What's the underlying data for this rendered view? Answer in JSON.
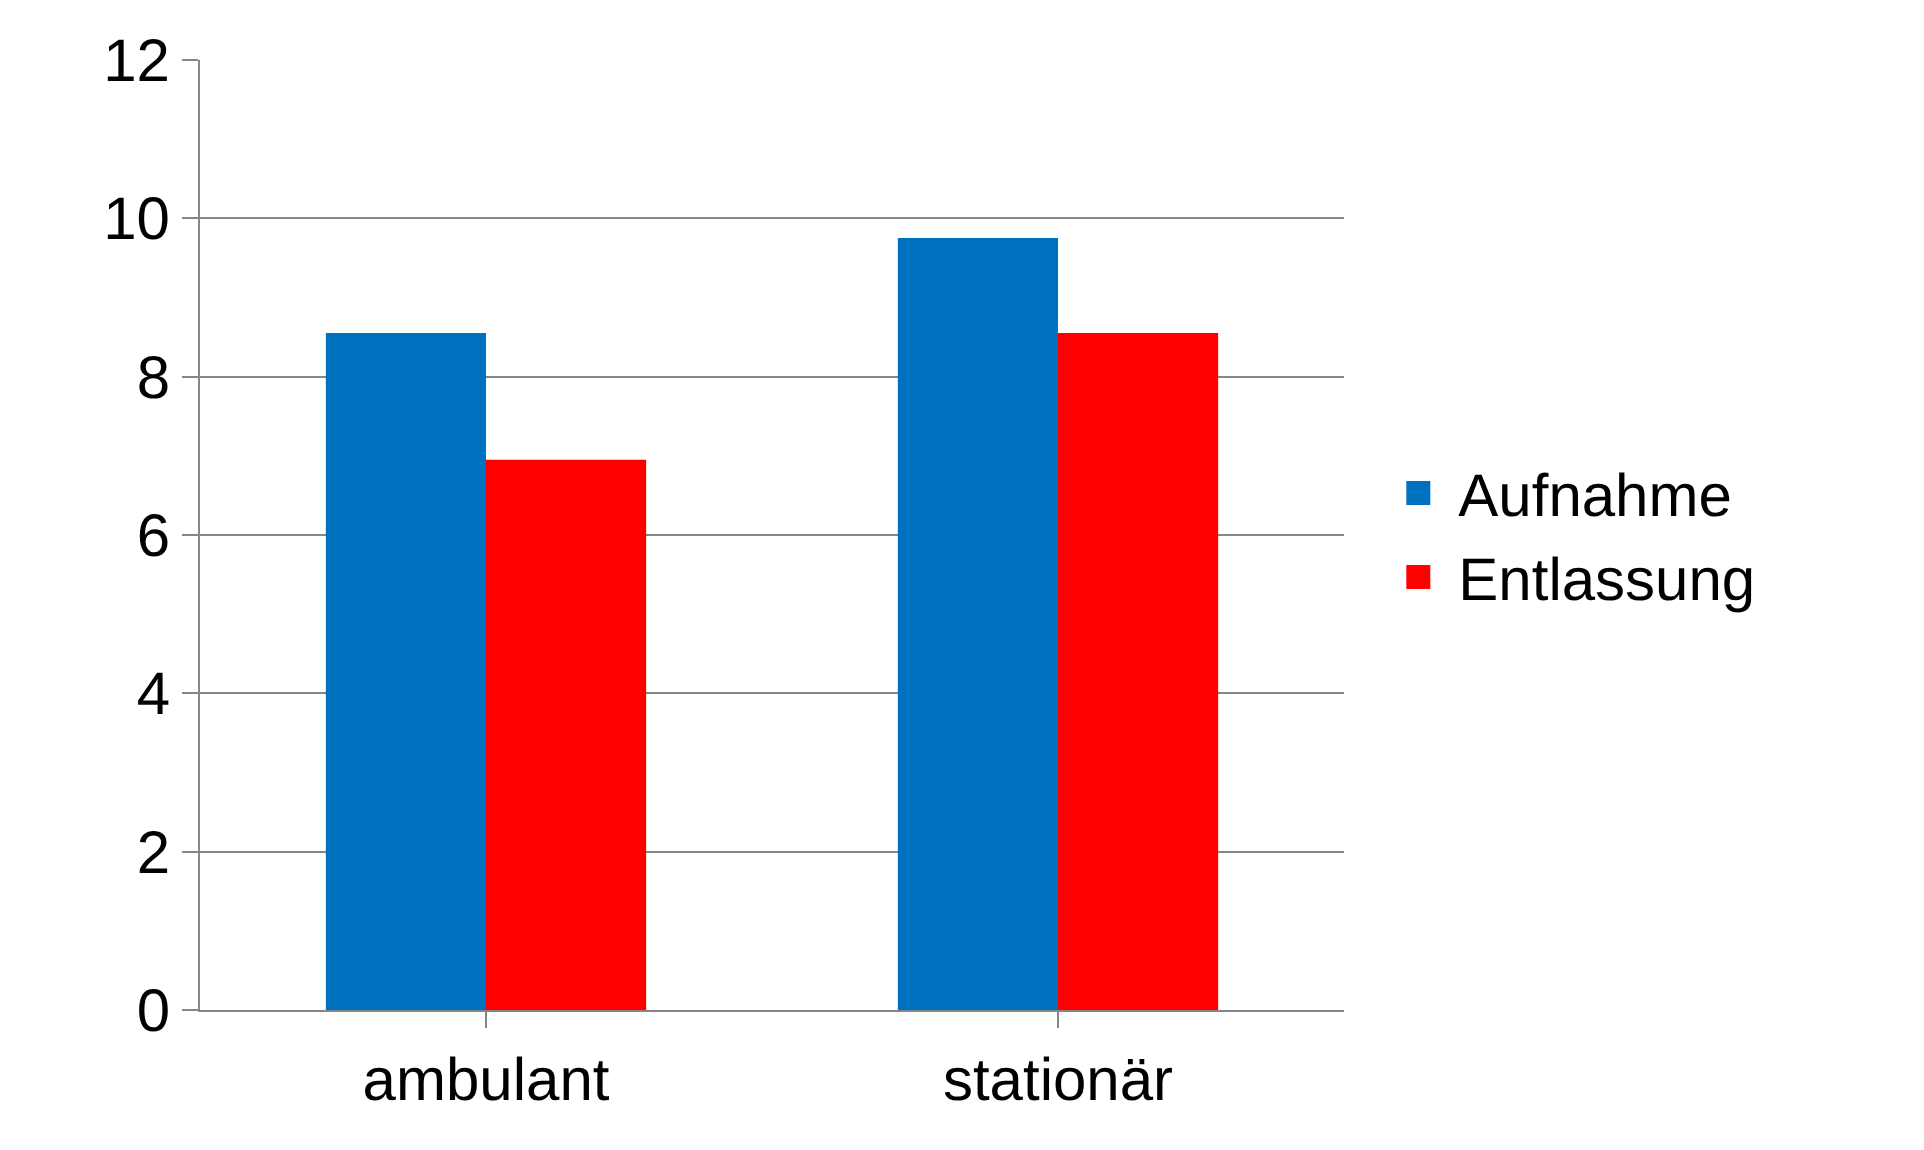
{
  "chart_data": {
    "type": "bar",
    "categories": [
      "ambulant",
      "stationär"
    ],
    "series": [
      {
        "name": "Aufnahme",
        "color": "#0070c0",
        "values": [
          8.55,
          9.75
        ]
      },
      {
        "name": "Entlassung",
        "color": "#ff0000",
        "values": [
          6.95,
          8.55
        ]
      }
    ],
    "ylim": [
      0,
      12
    ],
    "yticks": [
      0,
      2,
      4,
      6,
      8,
      10,
      12
    ],
    "grid": "y",
    "legend": "right"
  }
}
